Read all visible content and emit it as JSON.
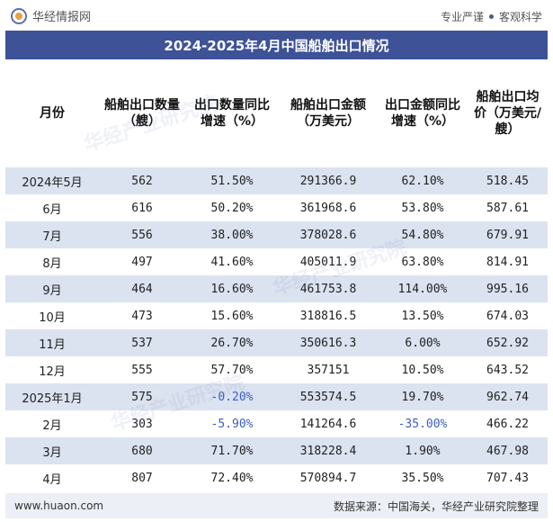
{
  "header": {
    "brand": "华经情报网",
    "slogan_left": "专业严谨",
    "slogan_right": "客观科学"
  },
  "title": "2024-2025年4月中国船舶出口情况",
  "columns": [
    "月份",
    "船舶出口数量（艘）",
    "出口数量同比增速（%）",
    "船舶出口金额（万美元）",
    "出口金额同比增速（%）",
    "船舶出口均价（万美元/艘）"
  ],
  "rows": [
    {
      "month": "2024年5月",
      "qty": "562",
      "qty_yoy": "51.50%",
      "amount": "291366.9",
      "amount_yoy": "62.10%",
      "price": "518.45"
    },
    {
      "month": "6月",
      "qty": "616",
      "qty_yoy": "50.20%",
      "amount": "361968.6",
      "amount_yoy": "53.80%",
      "price": "587.61"
    },
    {
      "month": "7月",
      "qty": "556",
      "qty_yoy": "38.00%",
      "amount": "378028.6",
      "amount_yoy": "54.80%",
      "price": "679.91"
    },
    {
      "month": "8月",
      "qty": "497",
      "qty_yoy": "41.60%",
      "amount": "405011.9",
      "amount_yoy": "63.80%",
      "price": "814.91"
    },
    {
      "month": "9月",
      "qty": "464",
      "qty_yoy": "16.60%",
      "amount": "461753.8",
      "amount_yoy": "114.00%",
      "price": "995.16"
    },
    {
      "month": "10月",
      "qty": "473",
      "qty_yoy": "15.60%",
      "amount": "318816.5",
      "amount_yoy": "13.50%",
      "price": "674.03"
    },
    {
      "month": "11月",
      "qty": "537",
      "qty_yoy": "26.70%",
      "amount": "350616.3",
      "amount_yoy": "6.00%",
      "price": "652.92"
    },
    {
      "month": "12月",
      "qty": "555",
      "qty_yoy": "57.70%",
      "amount": "357151",
      "amount_yoy": "10.50%",
      "price": "643.52"
    },
    {
      "month": "2025年1月",
      "qty": "575",
      "qty_yoy": "-0.20%",
      "amount": "553574.5",
      "amount_yoy": "19.70%",
      "price": "962.74"
    },
    {
      "month": "2月",
      "qty": "303",
      "qty_yoy": "-5.90%",
      "amount": "141264.6",
      "amount_yoy": "-35.00%",
      "price": "466.22"
    },
    {
      "month": "3月",
      "qty": "680",
      "qty_yoy": "71.70%",
      "amount": "318228.4",
      "amount_yoy": "1.90%",
      "price": "467.98"
    },
    {
      "month": "4月",
      "qty": "807",
      "qty_yoy": "72.40%",
      "amount": "570894.7",
      "amount_yoy": "35.50%",
      "price": "707.43"
    }
  ],
  "watermark": "华经产业研究院",
  "footer": {
    "site": "www.huaon.com",
    "source": "数据来源：中国海关，华经产业研究院整理"
  },
  "colors": {
    "title_bg": "#3d5297",
    "row_stripe": "#dbe2f0",
    "negative": "#3a5fc0",
    "footer_bg": "#eceff5"
  }
}
